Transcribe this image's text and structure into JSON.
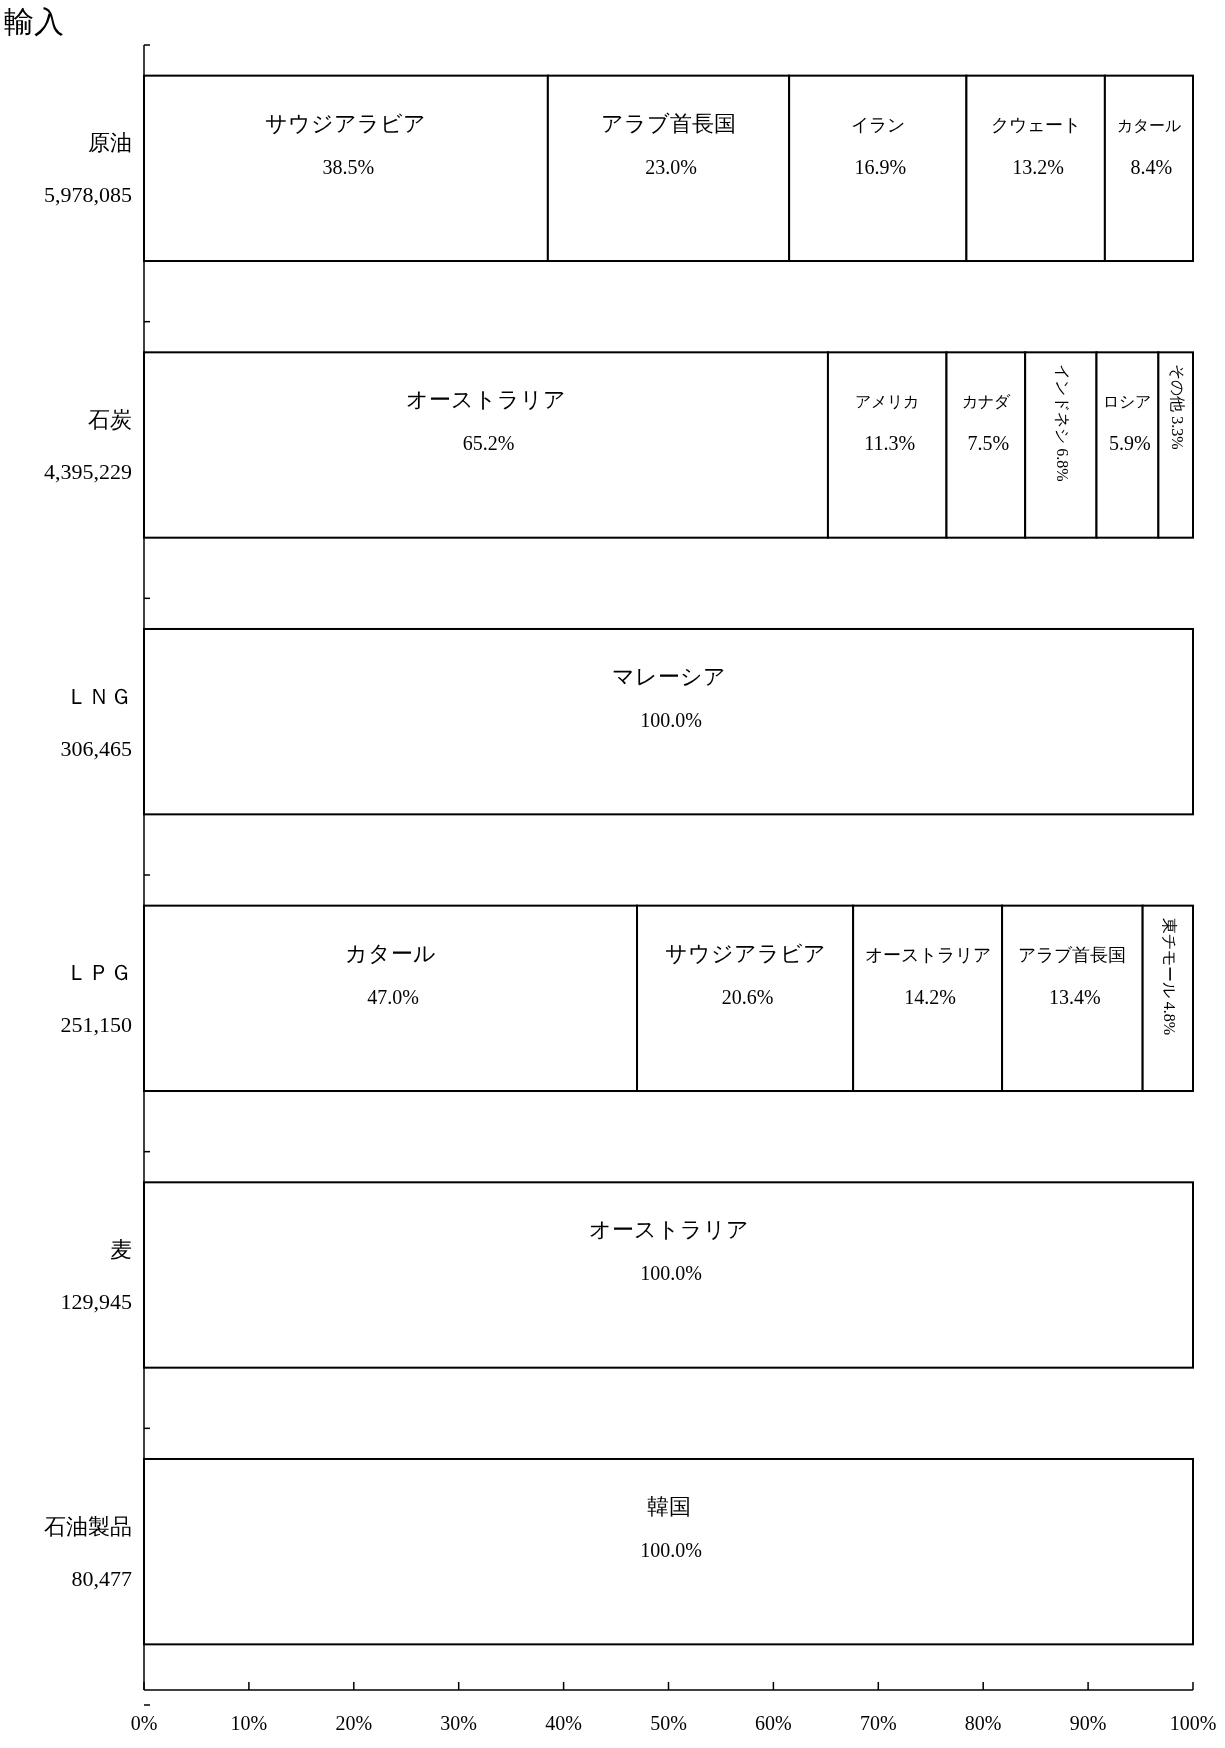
{
  "chart_data": {
    "type": "bar",
    "orientation": "horizontal",
    "stacked": true,
    "title": "輸入",
    "categories": [
      "原油\n5,978,085",
      "石炭\n4,395,229",
      "ＬＮＧ\n306,465",
      "ＬＰＧ\n251,150",
      "麦\n129,945",
      "石油製品\n80,477"
    ],
    "series": [
      {
        "color": "#ffffff",
        "values": [
          38.5,
          65.2,
          100.0,
          47.0,
          100.0,
          100.0
        ],
        "value_labels": [
          "サウジアラビア\n38.5%",
          "オーストラリア\n65.2%",
          "マレーシア\n100.0%",
          "カタール\n47.0%",
          "オーストラリア\n100.0%",
          "韓国\n100.0%"
        ]
      },
      {
        "color": "#ffffff",
        "values": [
          23.0,
          11.3,
          null,
          20.6,
          null,
          null
        ],
        "value_labels": [
          "アラブ首長国\n23.0%",
          "アメリカ\n11.3%",
          null,
          "サウジアラビア\n20.6%",
          null,
          null
        ]
      },
      {
        "color": "#ffffff",
        "values": [
          16.9,
          7.5,
          null,
          14.2,
          null,
          null
        ],
        "value_labels": [
          "イラン\n16.9%",
          "カナダ\n7.5%",
          null,
          "オーストラリア\n14.2%",
          null,
          null
        ]
      },
      {
        "color": "#ffffff",
        "values": [
          13.2,
          6.8,
          null,
          13.4,
          null,
          null
        ],
        "value_labels": [
          "クウェート\n13.2%",
          "インドネシ\n6.8%",
          null,
          "アラブ首長国\n13.4%",
          null,
          null
        ]
      },
      {
        "color": "#ffffff",
        "values": [
          8.4,
          5.9,
          null,
          4.8,
          null,
          null
        ],
        "value_labels": [
          "カタール\n8.4%",
          "ロシア\n5.9%",
          null,
          "東チモール\n4.8%",
          null,
          null
        ]
      },
      {
        "color": "#ffffff",
        "values": [
          null,
          3.3,
          null,
          null,
          null,
          null
        ],
        "value_labels": [
          null,
          "その他\n3.3%",
          null,
          null,
          null,
          null
        ]
      }
    ],
    "xlim": [
      0,
      100
    ],
    "xticks": [
      {
        "value": 0,
        "label": "0%"
      },
      {
        "value": 10,
        "label": "10%"
      },
      {
        "value": 20,
        "label": "20%"
      },
      {
        "value": 30,
        "label": "30%"
      },
      {
        "value": 40,
        "label": "40%"
      },
      {
        "value": 50,
        "label": "50%"
      },
      {
        "value": 60,
        "label": "60%"
      },
      {
        "value": 70,
        "label": "70%"
      },
      {
        "value": 80,
        "label": "80%"
      },
      {
        "value": 90,
        "label": "90%"
      },
      {
        "value": 100,
        "label": "100%"
      }
    ],
    "grid": false
  }
}
